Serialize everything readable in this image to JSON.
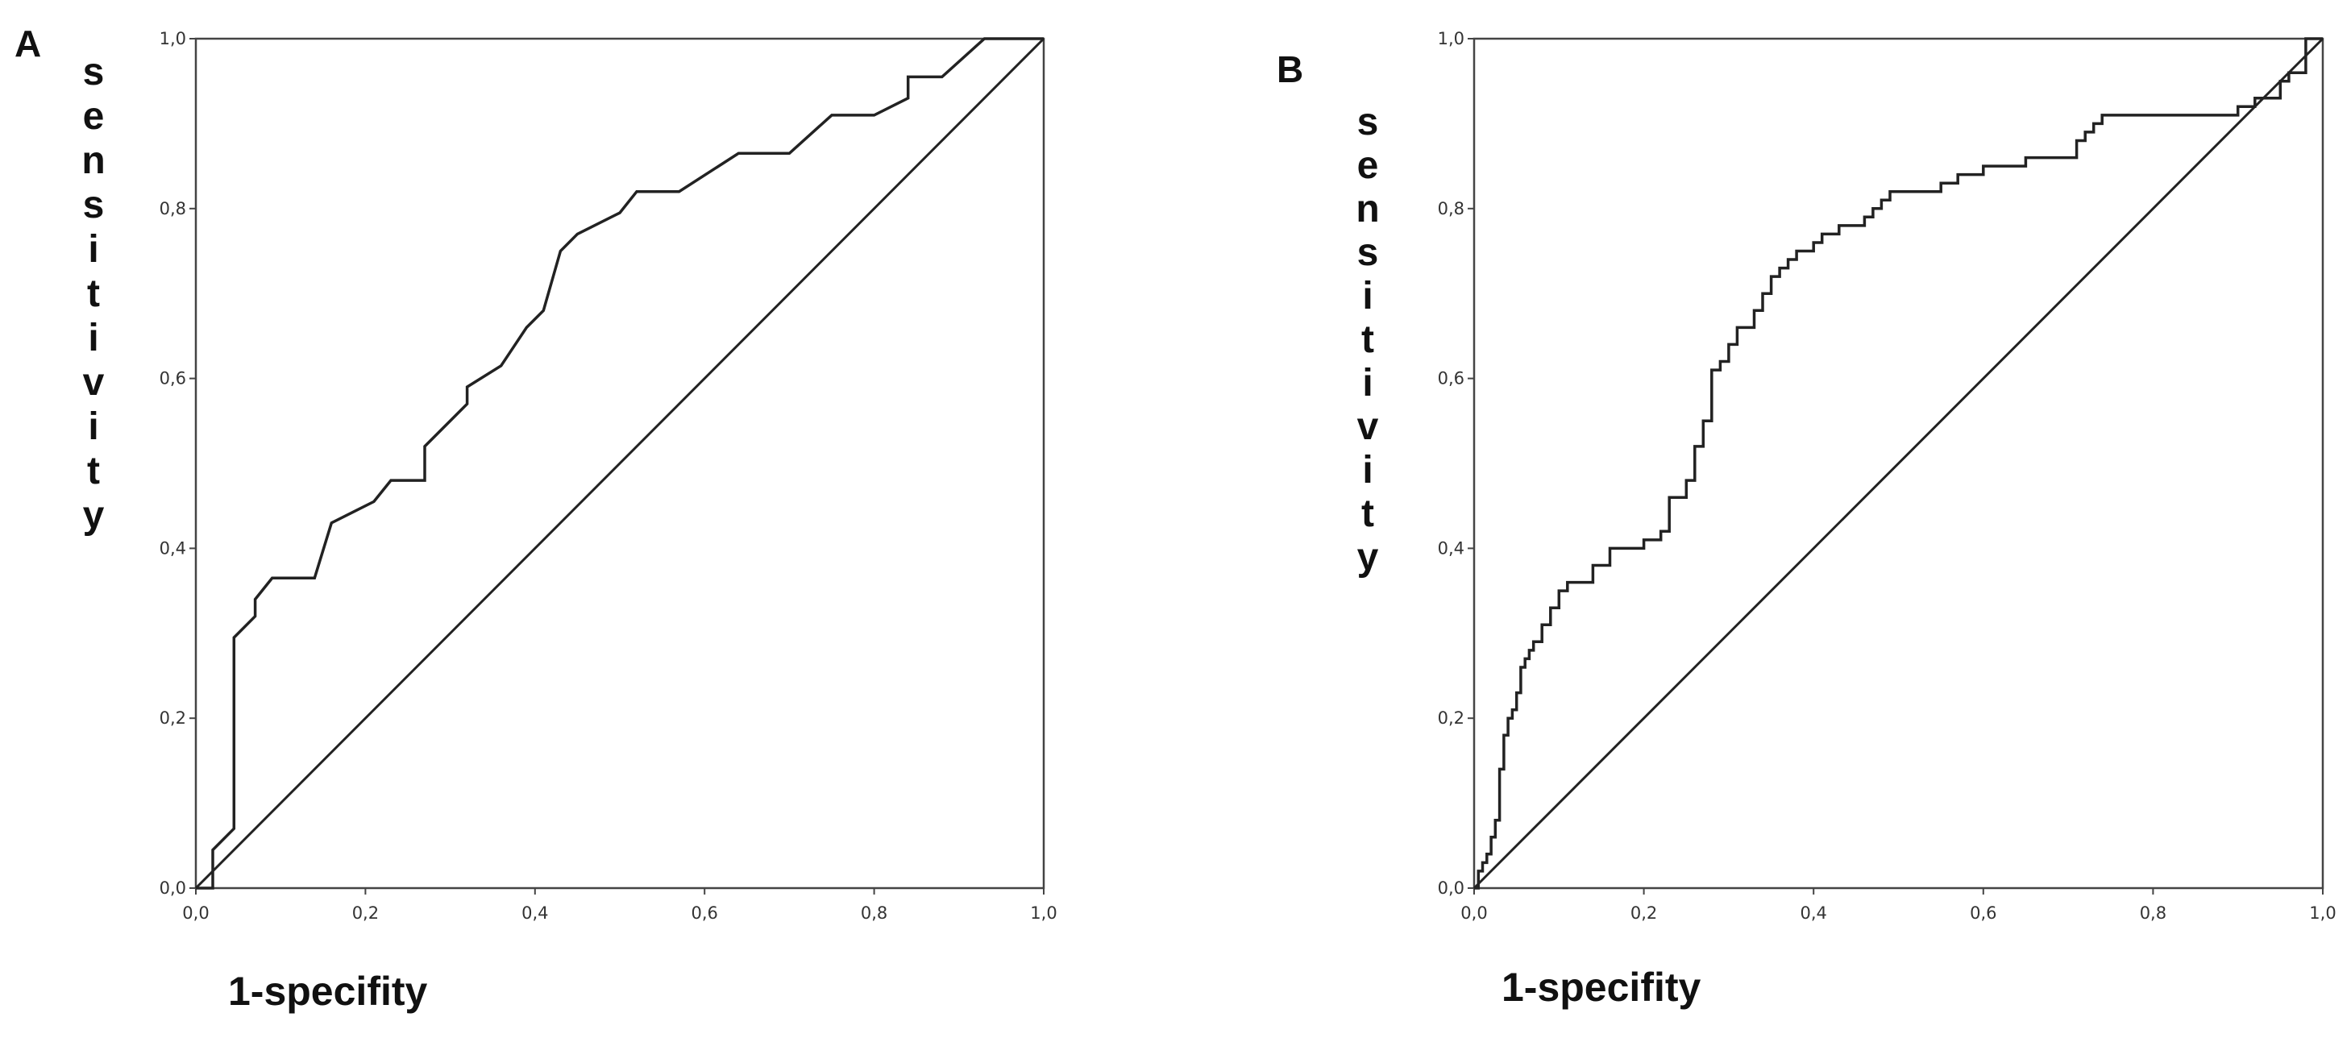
{
  "chart_data": [
    {
      "type": "line",
      "panel_label": "A",
      "xlabel": "1-specifity",
      "ylabel": "sensitivity",
      "xlim": [
        0,
        1
      ],
      "ylim": [
        0,
        1
      ],
      "x_ticks": [
        "0,0",
        "0,2",
        "0,4",
        "0,6",
        "0,8",
        "1,0"
      ],
      "y_ticks": [
        "0,0",
        "0,2",
        "0,4",
        "0,6",
        "0,8",
        "1,0"
      ],
      "grid": false,
      "series": [
        {
          "style": "polyline",
          "x": [
            0.0,
            0.02,
            0.02,
            0.045,
            0.045,
            0.07,
            0.07,
            0.09,
            0.14,
            0.16,
            0.21,
            0.23,
            0.27,
            0.27,
            0.32,
            0.32,
            0.36,
            0.39,
            0.41,
            0.43,
            0.45,
            0.5,
            0.52,
            0.57,
            0.64,
            0.7,
            0.75,
            0.8,
            0.84,
            0.84,
            0.88,
            0.93,
            0.95,
            1.0
          ],
          "y": [
            0.0,
            0.0,
            0.045,
            0.07,
            0.295,
            0.32,
            0.34,
            0.365,
            0.365,
            0.43,
            0.455,
            0.48,
            0.48,
            0.52,
            0.57,
            0.59,
            0.615,
            0.66,
            0.68,
            0.75,
            0.77,
            0.795,
            0.82,
            0.82,
            0.865,
            0.865,
            0.91,
            0.91,
            0.93,
            0.955,
            0.955,
            1.0,
            1.0,
            1.0
          ]
        },
        {
          "style": "reference",
          "x": [
            0,
            1
          ],
          "y": [
            0,
            1
          ]
        }
      ]
    },
    {
      "type": "line",
      "panel_label": "B",
      "xlabel": "1-specifity",
      "ylabel": "sensitivity",
      "xlim": [
        0,
        1
      ],
      "ylim": [
        0,
        1
      ],
      "x_ticks": [
        "0,0",
        "0,2",
        "0,4",
        "0,6",
        "0,8",
        "1,0"
      ],
      "y_ticks": [
        "0,0",
        "0,2",
        "0,4",
        "0,6",
        "0,8",
        "1,0"
      ],
      "grid": false,
      "series": [
        {
          "style": "step",
          "x": [
            0.0,
            0.005,
            0.01,
            0.015,
            0.02,
            0.025,
            0.03,
            0.035,
            0.04,
            0.045,
            0.05,
            0.055,
            0.06,
            0.065,
            0.07,
            0.08,
            0.09,
            0.1,
            0.11,
            0.14,
            0.16,
            0.2,
            0.22,
            0.23,
            0.25,
            0.26,
            0.27,
            0.28,
            0.29,
            0.3,
            0.31,
            0.33,
            0.34,
            0.35,
            0.36,
            0.37,
            0.38,
            0.4,
            0.41,
            0.43,
            0.46,
            0.47,
            0.48,
            0.49,
            0.5,
            0.55,
            0.57,
            0.6,
            0.6,
            0.65,
            0.71,
            0.72,
            0.73,
            0.74,
            0.9,
            0.92,
            0.95,
            0.96,
            0.98,
            1.0
          ],
          "y": [
            0.0,
            0.02,
            0.03,
            0.04,
            0.06,
            0.08,
            0.14,
            0.18,
            0.2,
            0.21,
            0.23,
            0.26,
            0.27,
            0.28,
            0.29,
            0.31,
            0.33,
            0.35,
            0.36,
            0.38,
            0.4,
            0.41,
            0.42,
            0.46,
            0.48,
            0.52,
            0.55,
            0.61,
            0.62,
            0.64,
            0.66,
            0.68,
            0.7,
            0.72,
            0.73,
            0.74,
            0.75,
            0.76,
            0.77,
            0.78,
            0.79,
            0.8,
            0.81,
            0.82,
            0.82,
            0.83,
            0.84,
            0.845,
            0.85,
            0.86,
            0.88,
            0.89,
            0.9,
            0.91,
            0.92,
            0.93,
            0.95,
            0.96,
            1.0,
            1.0
          ]
        },
        {
          "style": "reference",
          "x": [
            0,
            1
          ],
          "y": [
            0,
            1
          ]
        }
      ]
    }
  ]
}
